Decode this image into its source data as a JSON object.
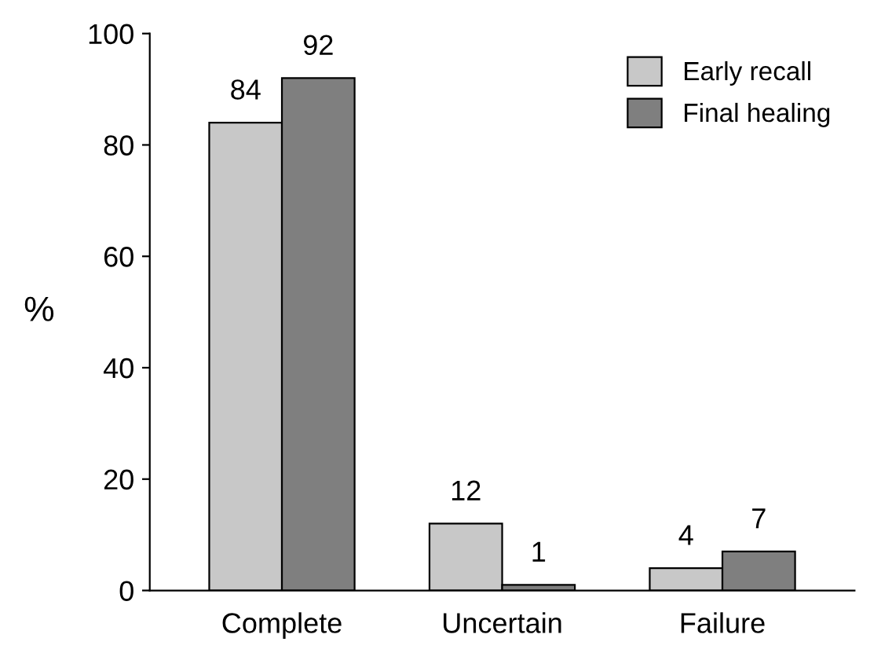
{
  "chart_data": {
    "type": "bar",
    "ylabel": "%",
    "categories": [
      "Complete",
      "Uncertain",
      "Failure"
    ],
    "series": [
      {
        "name": "Early recall",
        "color": "#c8c8c8",
        "values": [
          84,
          12,
          4
        ]
      },
      {
        "name": "Final healing",
        "color": "#7f7f7f",
        "values": [
          92,
          1,
          7
        ]
      }
    ],
    "ylim": [
      0,
      100
    ],
    "yticks": [
      0,
      20,
      40,
      60,
      80,
      100
    ],
    "data_labels": true,
    "legend": "top right",
    "grid": false
  }
}
